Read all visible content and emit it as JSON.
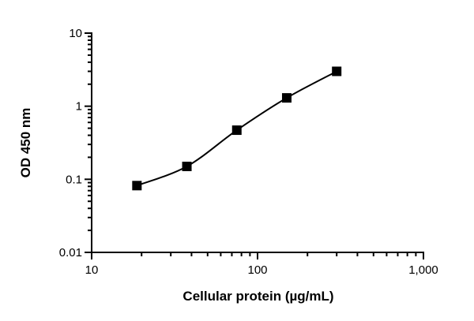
{
  "chart_data": {
    "type": "scatter",
    "title": "",
    "xlabel": "Cellular protein (µg/mL)",
    "ylabel": "OD 450 nm",
    "xscale": "log",
    "yscale": "log",
    "xlim": [
      10,
      1000
    ],
    "ylim": [
      0.01,
      10
    ],
    "x_ticks": [
      10,
      100,
      1000
    ],
    "x_tick_labels": [
      "10",
      "100",
      "1,000"
    ],
    "y_ticks": [
      0.01,
      0.1,
      1,
      10
    ],
    "y_tick_labels": [
      "0.01",
      "0.1",
      "1",
      "10"
    ],
    "grid": false,
    "fit": "smooth curve through points",
    "series": [
      {
        "marker": "square",
        "color": "#000000",
        "x": [
          18.75,
          37.5,
          75,
          150,
          300
        ],
        "y": [
          0.082,
          0.15,
          0.47,
          1.3,
          3.0
        ]
      }
    ]
  }
}
